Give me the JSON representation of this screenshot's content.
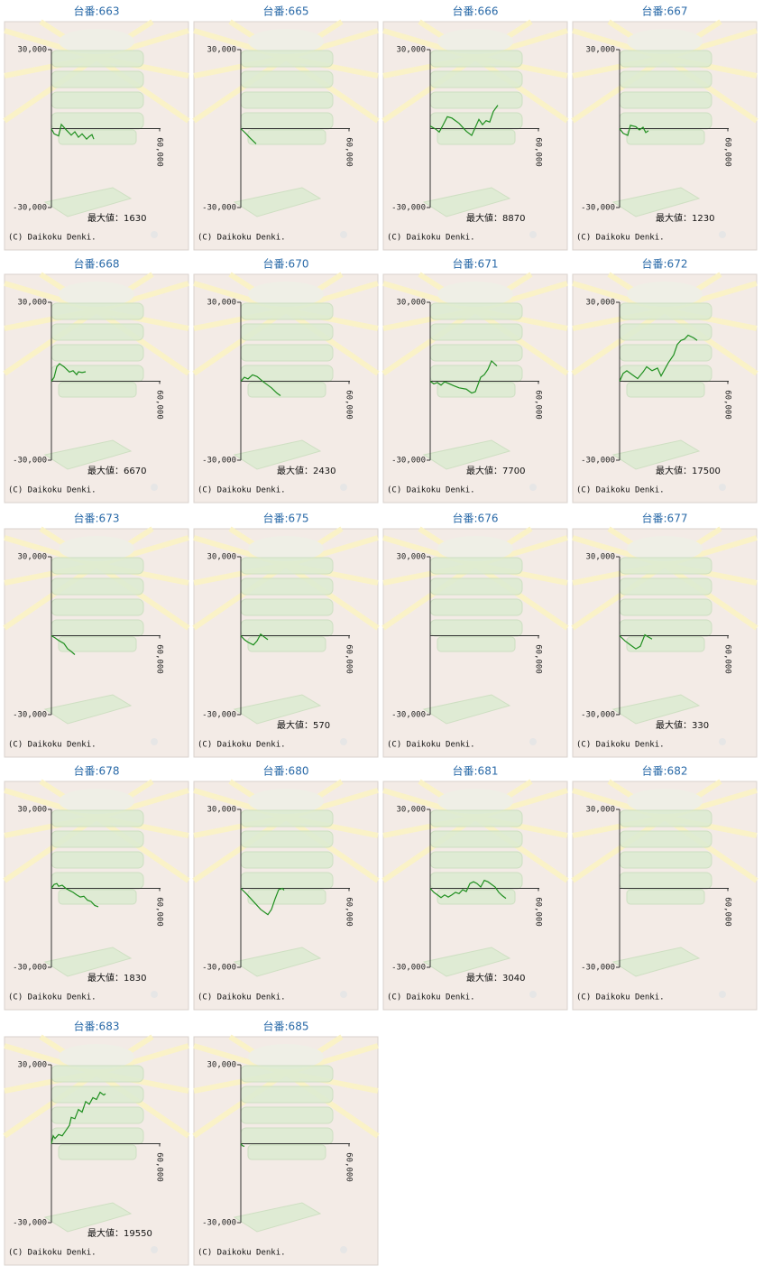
{
  "chart_data": [
    {
      "type": "line",
      "title": "台番:663",
      "annotation": "最大値：1630",
      "copyright": "(C) Daikoku Denki.",
      "xlim": [
        0,
        60000
      ],
      "xticks": [
        {
          "value": 60000,
          "label": "60,000"
        }
      ],
      "ylim": [
        -30000,
        30000
      ],
      "yticks": [
        {
          "value": 30000,
          "label": "30,000"
        },
        {
          "value": -30000,
          "label": "-30,000"
        }
      ],
      "x": [
        0,
        1500,
        4000,
        5500,
        8500,
        11000,
        13000,
        15000,
        17000,
        19500,
        21000,
        22500,
        23500
      ],
      "series": [
        {
          "color": "#1f8f1f",
          "values": [
            0,
            -2000,
            -2800,
            1600,
            -700,
            -2500,
            -1200,
            -3300,
            -2000,
            -4000,
            -3000,
            -2300,
            -4000
          ]
        }
      ]
    },
    {
      "type": "line",
      "title": "台番:665",
      "copyright": "(C) Daikoku Denki.",
      "xlim": [
        0,
        60000
      ],
      "xticks": [
        {
          "value": 60000,
          "label": "60,000"
        }
      ],
      "ylim": [
        -30000,
        30000
      ],
      "yticks": [
        {
          "value": 30000,
          "label": "30,000"
        },
        {
          "value": -30000,
          "label": "-30,000"
        }
      ],
      "x": [
        0,
        3000,
        5000,
        8500
      ],
      "series": [
        {
          "color": "#1f8f1f",
          "values": [
            0,
            -2000,
            -3500,
            -5800
          ]
        }
      ]
    },
    {
      "type": "line",
      "title": "台番:666",
      "annotation": "最大値：8870",
      "copyright": "(C) Daikoku Denki.",
      "xlim": [
        0,
        60000
      ],
      "xticks": [
        {
          "value": 60000,
          "label": "60,000"
        }
      ],
      "ylim": [
        -30000,
        30000
      ],
      "yticks": [
        {
          "value": 30000,
          "label": "30,000"
        },
        {
          "value": -30000,
          "label": "-30,000"
        }
      ],
      "x": [
        0,
        3000,
        5000,
        7000,
        9500,
        12000,
        16000,
        20000,
        23000,
        27000,
        29000,
        31000,
        33000,
        35000,
        37500
      ],
      "series": [
        {
          "color": "#1f8f1f",
          "values": [
            1000,
            -200,
            -1300,
            1200,
            4500,
            4000,
            2000,
            -1000,
            -2600,
            3500,
            1500,
            3000,
            2500,
            6500,
            8870
          ]
        }
      ]
    },
    {
      "type": "line",
      "title": "台番:667",
      "annotation": "最大値：1230",
      "copyright": "(C) Daikoku Denki.",
      "xlim": [
        0,
        60000
      ],
      "xticks": [
        {
          "value": 60000,
          "label": "60,000"
        }
      ],
      "ylim": [
        -30000,
        30000
      ],
      "yticks": [
        {
          "value": 30000,
          "label": "30,000"
        },
        {
          "value": -30000,
          "label": "-30,000"
        }
      ],
      "x": [
        0,
        2000,
        4500,
        6000,
        9000,
        11000,
        13000,
        14500,
        16000
      ],
      "series": [
        {
          "color": "#1f8f1f",
          "values": [
            0,
            -1800,
            -2600,
            1230,
            700,
            -500,
            500,
            -1500,
            -800
          ]
        }
      ]
    },
    {
      "type": "line",
      "title": "台番:668",
      "annotation": "最大値：6670",
      "copyright": "(C) Daikoku Denki.",
      "xlim": [
        0,
        60000
      ],
      "xticks": [
        {
          "value": 60000,
          "label": "60,000"
        }
      ],
      "ylim": [
        -30000,
        30000
      ],
      "yticks": [
        {
          "value": 30000,
          "label": "30,000"
        },
        {
          "value": -30000,
          "label": "-30,000"
        }
      ],
      "x": [
        0,
        1500,
        3000,
        4500,
        7000,
        10000,
        12000,
        14000,
        15000,
        17000,
        19000
      ],
      "series": [
        {
          "color": "#1f8f1f",
          "values": [
            0,
            1500,
            5500,
            6670,
            5500,
            3500,
            4000,
            2500,
            3600,
            3300,
            3600
          ]
        }
      ]
    },
    {
      "type": "line",
      "title": "台番:670",
      "annotation": "最大値：2430",
      "copyright": "(C) Daikoku Denki.",
      "xlim": [
        0,
        60000
      ],
      "xticks": [
        {
          "value": 60000,
          "label": "60,000"
        }
      ],
      "ylim": [
        -30000,
        30000
      ],
      "yticks": [
        {
          "value": 30000,
          "label": "30,000"
        },
        {
          "value": -30000,
          "label": "-30,000"
        }
      ],
      "x": [
        0,
        2000,
        4000,
        6500,
        9000,
        13000,
        17000,
        20000,
        22000
      ],
      "series": [
        {
          "color": "#1f8f1f",
          "values": [
            0,
            1500,
            900,
            2430,
            1800,
            -500,
            -2500,
            -4500,
            -5500
          ]
        }
      ]
    },
    {
      "type": "line",
      "title": "台番:671",
      "annotation": "最大値：7700",
      "copyright": "(C) Daikoku Denki.",
      "xlim": [
        0,
        60000
      ],
      "xticks": [
        {
          "value": 60000,
          "label": "60,000"
        }
      ],
      "ylim": [
        -30000,
        30000
      ],
      "yticks": [
        {
          "value": 30000,
          "label": "30,000"
        },
        {
          "value": -30000,
          "label": "-30,000"
        }
      ],
      "x": [
        0,
        2000,
        4000,
        6000,
        8000,
        10000,
        13000,
        16000,
        20000,
        23000,
        25000,
        28000,
        30000,
        32000,
        34000,
        37000
      ],
      "series": [
        {
          "color": "#1f8f1f",
          "values": [
            0,
            -1000,
            -500,
            -1500,
            -200,
            -800,
            -1700,
            -2500,
            -3000,
            -4500,
            -4000,
            1500,
            2500,
            4500,
            7700,
            5800
          ]
        }
      ]
    },
    {
      "type": "line",
      "title": "台番:672",
      "annotation": "最大値：17500",
      "copyright": "(C) Daikoku Denki.",
      "xlim": [
        0,
        60000
      ],
      "xticks": [
        {
          "value": 60000,
          "label": "60,000"
        }
      ],
      "ylim": [
        -30000,
        30000
      ],
      "yticks": [
        {
          "value": 30000,
          "label": "30,000"
        },
        {
          "value": -30000,
          "label": "-30,000"
        }
      ],
      "x": [
        0,
        2000,
        4000,
        7000,
        10000,
        13000,
        15000,
        18000,
        21000,
        23000,
        27000,
        30000,
        32000,
        34000,
        36000,
        38000,
        41000,
        43000
      ],
      "series": [
        {
          "color": "#1f8f1f",
          "values": [
            0,
            3000,
            4000,
            2500,
            1000,
            3500,
            5500,
            4000,
            5000,
            2000,
            7000,
            10000,
            14000,
            15500,
            16000,
            17500,
            16500,
            15500
          ]
        }
      ]
    },
    {
      "type": "line",
      "title": "台番:673",
      "copyright": "(C) Daikoku Denki.",
      "xlim": [
        0,
        60000
      ],
      "xticks": [
        {
          "value": 60000,
          "label": "60,000"
        }
      ],
      "ylim": [
        -30000,
        30000
      ],
      "yticks": [
        {
          "value": 30000,
          "label": "30,000"
        },
        {
          "value": -30000,
          "label": "-30,000"
        }
      ],
      "x": [
        0,
        2000,
        4000,
        7000,
        9000,
        11000,
        13000
      ],
      "series": [
        {
          "color": "#1f8f1f",
          "values": [
            0,
            -800,
            -1800,
            -3000,
            -5000,
            -6000,
            -7200
          ]
        }
      ]
    },
    {
      "type": "line",
      "title": "台番:675",
      "annotation": "最大値：570",
      "copyright": "(C) Daikoku Denki.",
      "xlim": [
        0,
        60000
      ],
      "xticks": [
        {
          "value": 60000,
          "label": "60,000"
        }
      ],
      "ylim": [
        -30000,
        30000
      ],
      "yticks": [
        {
          "value": 30000,
          "label": "30,000"
        },
        {
          "value": -30000,
          "label": "-30,000"
        }
      ],
      "x": [
        0,
        2000,
        4000,
        7000,
        9000,
        11000,
        13000,
        15000
      ],
      "series": [
        {
          "color": "#1f8f1f",
          "values": [
            0,
            -1500,
            -2500,
            -3500,
            -2000,
            570,
            -500,
            -1500
          ]
        }
      ]
    },
    {
      "type": "line",
      "title": "台番:676",
      "copyright": "(C) Daikoku Denki.",
      "xlim": [
        0,
        60000
      ],
      "xticks": [
        {
          "value": 60000,
          "label": "60,000"
        }
      ],
      "ylim": [
        -30000,
        30000
      ],
      "yticks": [
        {
          "value": 30000,
          "label": "30,000"
        },
        {
          "value": -30000,
          "label": "-30,000"
        }
      ],
      "x": [],
      "series": [
        {
          "color": "#1f8f1f",
          "values": []
        }
      ]
    },
    {
      "type": "line",
      "title": "台番:677",
      "annotation": "最大値：330",
      "copyright": "(C) Daikoku Denki.",
      "xlim": [
        0,
        60000
      ],
      "xticks": [
        {
          "value": 60000,
          "label": "60,000"
        }
      ],
      "ylim": [
        -30000,
        30000
      ],
      "yticks": [
        {
          "value": 30000,
          "label": "30,000"
        },
        {
          "value": -30000,
          "label": "-30,000"
        }
      ],
      "x": [
        0,
        3000,
        6000,
        9000,
        11500,
        14000,
        16000,
        18000
      ],
      "series": [
        {
          "color": "#1f8f1f",
          "values": [
            0,
            -2000,
            -3500,
            -5000,
            -4000,
            330,
            -500,
            -1300
          ]
        }
      ]
    },
    {
      "type": "line",
      "title": "台番:678",
      "annotation": "最大値：1830",
      "copyright": "(C) Daikoku Denki.",
      "xlim": [
        0,
        60000
      ],
      "xticks": [
        {
          "value": 60000,
          "label": "60,000"
        }
      ],
      "ylim": [
        -30000,
        30000
      ],
      "yticks": [
        {
          "value": 30000,
          "label": "30,000"
        },
        {
          "value": -30000,
          "label": "-30,000"
        }
      ],
      "x": [
        0,
        1500,
        3000,
        4000,
        6000,
        8000,
        10000,
        12000,
        14000,
        16000,
        18000,
        20000,
        22000,
        24000,
        26000
      ],
      "series": [
        {
          "color": "#1f8f1f",
          "values": [
            0,
            1500,
            1830,
            800,
            1200,
            0,
            -800,
            -1500,
            -2500,
            -3300,
            -3000,
            -4500,
            -5000,
            -6500,
            -7000
          ]
        }
      ]
    },
    {
      "type": "line",
      "title": "台番:680",
      "copyright": "(C) Daikoku Denki.",
      "xlim": [
        0,
        60000
      ],
      "xticks": [
        {
          "value": 60000,
          "label": "60,000"
        }
      ],
      "ylim": [
        -30000,
        30000
      ],
      "yticks": [
        {
          "value": 30000,
          "label": "30,000"
        },
        {
          "value": -30000,
          "label": "-30,000"
        }
      ],
      "x": [
        0,
        3000,
        7000,
        11000,
        15000,
        17000,
        19000,
        21000,
        23000,
        24000
      ],
      "series": [
        {
          "color": "#1f8f1f",
          "values": [
            0,
            -2000,
            -5000,
            -8000,
            -10000,
            -8000,
            -4000,
            -500,
            0,
            -700
          ]
        }
      ]
    },
    {
      "type": "line",
      "title": "台番:681",
      "annotation": "最大値：3040",
      "copyright": "(C) Daikoku Denki.",
      "xlim": [
        0,
        60000
      ],
      "xticks": [
        {
          "value": 60000,
          "label": "60,000"
        }
      ],
      "ylim": [
        -30000,
        30000
      ],
      "yticks": [
        {
          "value": 30000,
          "label": "30,000"
        },
        {
          "value": -30000,
          "label": "-30,000"
        }
      ],
      "x": [
        0,
        2000,
        4000,
        6000,
        8000,
        10000,
        12000,
        14000,
        16000,
        18000,
        20000,
        22000,
        24000,
        26000,
        28000,
        30000,
        32000,
        34000,
        36000,
        38000,
        40000,
        42000
      ],
      "series": [
        {
          "color": "#1f8f1f",
          "values": [
            0,
            -1500,
            -2500,
            -3500,
            -2500,
            -3300,
            -2500,
            -1500,
            -2000,
            -500,
            -1200,
            1800,
            2500,
            1800,
            500,
            3040,
            2500,
            1500,
            500,
            -1500,
            -2800,
            -3800
          ]
        }
      ]
    },
    {
      "type": "line",
      "title": "台番:682",
      "copyright": "(C) Daikoku Denki.",
      "xlim": [
        0,
        60000
      ],
      "xticks": [
        {
          "value": 60000,
          "label": "60,000"
        }
      ],
      "ylim": [
        -30000,
        30000
      ],
      "yticks": [
        {
          "value": 30000,
          "label": "30,000"
        },
        {
          "value": -30000,
          "label": "-30,000"
        }
      ],
      "x": [],
      "series": [
        {
          "color": "#1f8f1f",
          "values": []
        }
      ]
    },
    {
      "type": "line",
      "title": "台番:683",
      "annotation": "最大値：19550",
      "copyright": "(C) Daikoku Denki.",
      "xlim": [
        0,
        60000
      ],
      "xticks": [
        {
          "value": 60000,
          "label": "60,000"
        }
      ],
      "ylim": [
        -30000,
        30000
      ],
      "yticks": [
        {
          "value": 30000,
          "label": "30,000"
        },
        {
          "value": -30000,
          "label": "-30,000"
        }
      ],
      "x": [
        0,
        1000,
        2000,
        4000,
        6000,
        8000,
        10000,
        11000,
        13000,
        15000,
        17000,
        19000,
        21000,
        23000,
        25000,
        27000,
        29000,
        30000
      ],
      "series": [
        {
          "color": "#1f8f1f",
          "values": [
            0,
            3000,
            2000,
            3500,
            3000,
            5000,
            7000,
            10000,
            9500,
            13000,
            12000,
            16000,
            15000,
            17500,
            16800,
            19550,
            18500,
            19000
          ]
        }
      ]
    },
    {
      "type": "line",
      "title": "台番:685",
      "copyright": "(C) Daikoku Denki.",
      "xlim": [
        0,
        60000
      ],
      "xticks": [
        {
          "value": 60000,
          "label": "60,000"
        }
      ],
      "ylim": [
        -30000,
        30000
      ],
      "yticks": [
        {
          "value": 30000,
          "label": "30,000"
        },
        {
          "value": -30000,
          "label": "-30,000"
        }
      ],
      "x": [
        0,
        1000,
        2000
      ],
      "series": [
        {
          "color": "#1f8f1f",
          "values": [
            0,
            -800,
            -1000
          ]
        }
      ]
    }
  ]
}
